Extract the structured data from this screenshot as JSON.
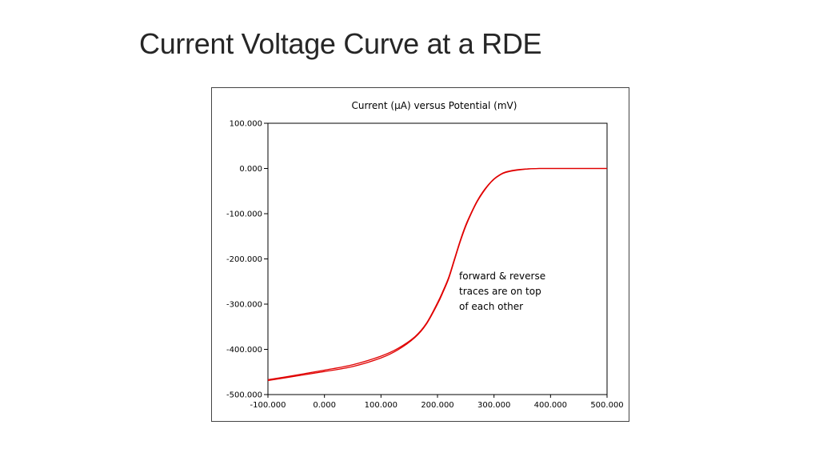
{
  "slide": {
    "title": "Current Voltage Curve at a RDE"
  },
  "chart_data": {
    "type": "line",
    "title": "Current (µA) versus Potential (mV)",
    "xlabel": "",
    "ylabel": "",
    "xlim": [
      -100,
      500
    ],
    "ylim": [
      -500,
      100
    ],
    "x_ticks": [
      "-100.000",
      "0.000",
      "100.000",
      "200.000",
      "300.000",
      "400.000",
      "500.000"
    ],
    "y_ticks": [
      "100.000",
      "0.000",
      "-100.000",
      "-200.000",
      "-300.000",
      "-400.000",
      "-500.000"
    ],
    "x_tick_values": [
      -100,
      0,
      100,
      200,
      300,
      400,
      500
    ],
    "y_tick_values": [
      100,
      0,
      -100,
      -200,
      -300,
      -400,
      -500
    ],
    "grid": false,
    "line_color": "#e00000",
    "series": [
      {
        "x": [
          -100,
          -50,
          0,
          50,
          100,
          130,
          160,
          180,
          200,
          210,
          220,
          230,
          240,
          250,
          260,
          270,
          280,
          290,
          300,
          310,
          320,
          340,
          360,
          380,
          400,
          450,
          500
        ],
        "y": [
          -467,
          -457,
          -446,
          -434,
          -415,
          -398,
          -372,
          -343,
          -297,
          -270,
          -240,
          -200,
          -160,
          -125,
          -97,
          -72,
          -52,
          -36,
          -23,
          -14,
          -8,
          -3,
          -1,
          0,
          0,
          0,
          0
        ]
      },
      {
        "x": [
          -100,
          -50,
          0,
          50,
          100,
          130,
          160,
          180,
          200,
          210,
          220,
          230,
          240,
          250,
          260,
          270,
          280,
          290,
          300,
          310,
          320,
          340,
          360,
          380,
          400,
          450,
          500
        ],
        "y": [
          -469,
          -459,
          -449,
          -438,
          -419,
          -401,
          -374,
          -345,
          -300,
          -273,
          -243,
          -203,
          -163,
          -128,
          -99,
          -74,
          -54,
          -37,
          -24,
          -15,
          -9,
          -4,
          -1,
          0,
          0,
          0,
          0
        ]
      }
    ],
    "annotation": [
      "forward & reverse",
      "traces are on top",
      "of each other"
    ]
  }
}
